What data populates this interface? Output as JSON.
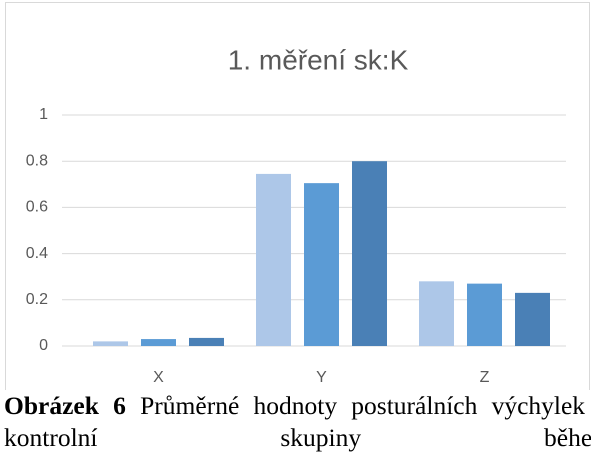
{
  "chart_data": {
    "type": "bar",
    "title": "1. měření sk:K",
    "categories": [
      "X",
      "Y",
      "Z"
    ],
    "series": [
      {
        "color": "#adc7e8",
        "values": [
          0.02,
          0.745,
          0.28
        ]
      },
      {
        "color": "#5b9bd5",
        "values": [
          0.03,
          0.705,
          0.27
        ]
      },
      {
        "color": "#4a80b6",
        "values": [
          0.035,
          0.8,
          0.23
        ]
      }
    ],
    "ylim": [
      0,
      1
    ],
    "yticks": [
      0,
      0.2,
      0.4,
      0.6,
      0.8,
      1
    ],
    "grid": true
  },
  "caption": {
    "label": "Obrázek 6",
    "text": "Průměrné hodnoty posturálních výchylek u kontrolní skupiny během"
  }
}
